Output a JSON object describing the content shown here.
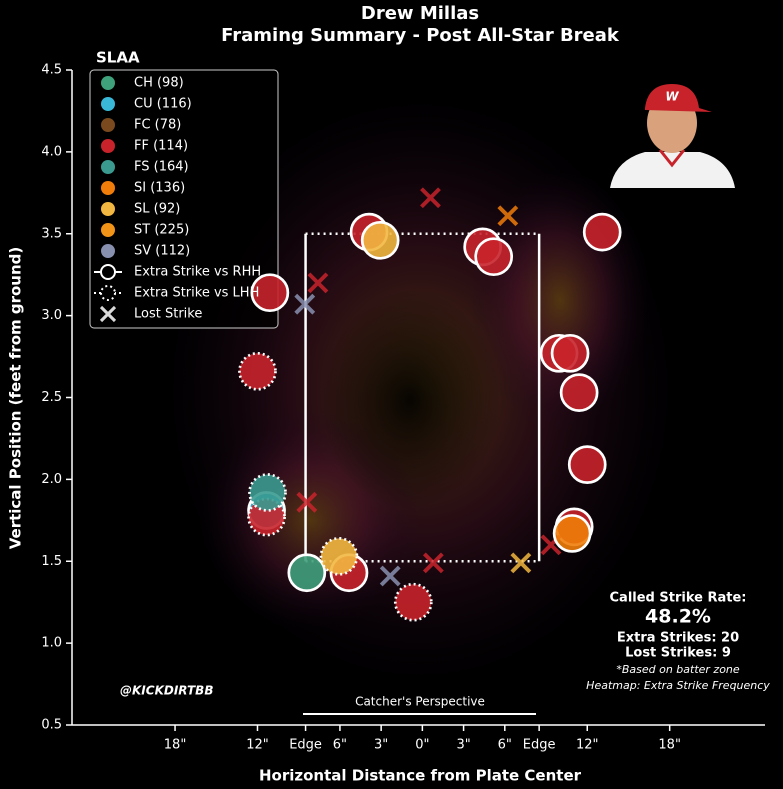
{
  "chart_data": {
    "type": "scatter",
    "title": "Drew Millas",
    "subtitle": "Framing Summary - Post All-Star Break",
    "x_label": "Horizontal Distance from Plate Center",
    "y_label": "Vertical Position (feet from ground)",
    "legend_title": "SLAA",
    "legend": "upper left",
    "xlim": [
      -25.5,
      25.2
    ],
    "ylim": [
      0.5,
      4.5
    ],
    "xticks": [
      {
        "value": -18,
        "label": "18\""
      },
      {
        "value": -12,
        "label": "12\""
      },
      {
        "value": -8.5,
        "label": "Edge"
      },
      {
        "value": -6,
        "label": "6\""
      },
      {
        "value": -3,
        "label": "3\""
      },
      {
        "value": 0,
        "label": "0\""
      },
      {
        "value": 3,
        "label": "3\""
      },
      {
        "value": 6,
        "label": "6\""
      },
      {
        "value": 8.5,
        "label": "Edge"
      },
      {
        "value": 12,
        "label": "12\""
      },
      {
        "value": 18,
        "label": "18\""
      }
    ],
    "yticks": [
      0.5,
      {
        "value": 1,
        "label": "1.0"
      },
      1.5,
      {
        "value": 2,
        "label": "2.0"
      },
      2.5,
      {
        "value": 3,
        "label": "3.0"
      },
      3.5,
      {
        "value": 4,
        "label": "4.0"
      },
      4.5
    ],
    "zone": {
      "x": [
        -8.5,
        8.5
      ],
      "y": [
        1.5,
        3.5
      ]
    },
    "marker_legend": [
      {
        "style": "solid",
        "label": "Extra Strike vs RHH"
      },
      {
        "style": "dotted",
        "label": "Extra Strike vs LHH"
      },
      {
        "style": "x",
        "label": "Lost Strike"
      }
    ],
    "series": [
      {
        "name": "CH (98)",
        "color": "#3fa07c",
        "x": [
          -8.41
        ],
        "values": [
          1.43
        ],
        "markers": [
          "solid"
        ]
      },
      {
        "name": "CU (116)",
        "color": "#3ab8d8",
        "x": [
          -11.34
        ],
        "values": [
          1.81
        ],
        "markers": [
          "solid"
        ]
      },
      {
        "name": "FC (78)",
        "color": "#7a4a1e",
        "x": [],
        "values": [],
        "markers": []
      },
      {
        "name": "FF (114)",
        "color": "#c8232b",
        "x": [
          -11.1,
          -12.0,
          -11.34,
          -3.88,
          4.39,
          5.19,
          13.09,
          9.95,
          10.75,
          11.41,
          12.0,
          11.05,
          -5.34,
          -0.66,
          0.59,
          -7.6,
          -8.41,
          0.8,
          9.36
        ],
        "values": [
          3.14,
          2.66,
          1.77,
          3.51,
          3.42,
          3.36,
          3.51,
          2.77,
          2.77,
          2.53,
          2.09,
          1.71,
          1.43,
          1.25,
          3.72,
          3.2,
          1.86,
          1.49,
          1.6
        ],
        "markers": [
          "solid",
          "dotted",
          "dotted",
          "solid",
          "solid",
          "solid",
          "solid",
          "solid",
          "solid",
          "solid",
          "solid",
          "solid",
          "solid",
          "dotted",
          "x",
          "x",
          "x",
          "x",
          "x"
        ]
      },
      {
        "name": "FS (164)",
        "color": "#3a9a90",
        "x": [
          -11.27
        ],
        "values": [
          1.92
        ],
        "markers": [
          "dotted"
        ]
      },
      {
        "name": "SI (136)",
        "color": "#f07d0a",
        "x": [
          10.9,
          6.22
        ],
        "values": [
          1.67,
          3.61
        ],
        "markers": [
          "solid",
          "x"
        ]
      },
      {
        "name": "SL (92)",
        "color": "#f2b740",
        "x": [
          -3.07,
          -6.07,
          7.17
        ],
        "values": [
          3.46,
          1.53,
          1.49
        ],
        "markers": [
          "solid",
          "dotted",
          "x"
        ]
      },
      {
        "name": "ST (225)",
        "color": "#f29418",
        "x": [],
        "values": [],
        "markers": []
      },
      {
        "name": "SV (112)",
        "color": "#8890b0",
        "x": [
          -8.56,
          -2.34
        ],
        "values": [
          3.07,
          1.41
        ],
        "markers": [
          "x",
          "x"
        ]
      }
    ],
    "annotations": {
      "perspective": "Catcher's Perspective",
      "handle": "@KICKDIRTBB",
      "rate_label": "Called Strike Rate:",
      "rate": "48.2%",
      "extra": "Extra Strikes: 20",
      "lost": "Lost Strikes: 9",
      "note1": "*Based on batter zone",
      "note2": "Heatmap: Extra Strike Frequency"
    }
  }
}
